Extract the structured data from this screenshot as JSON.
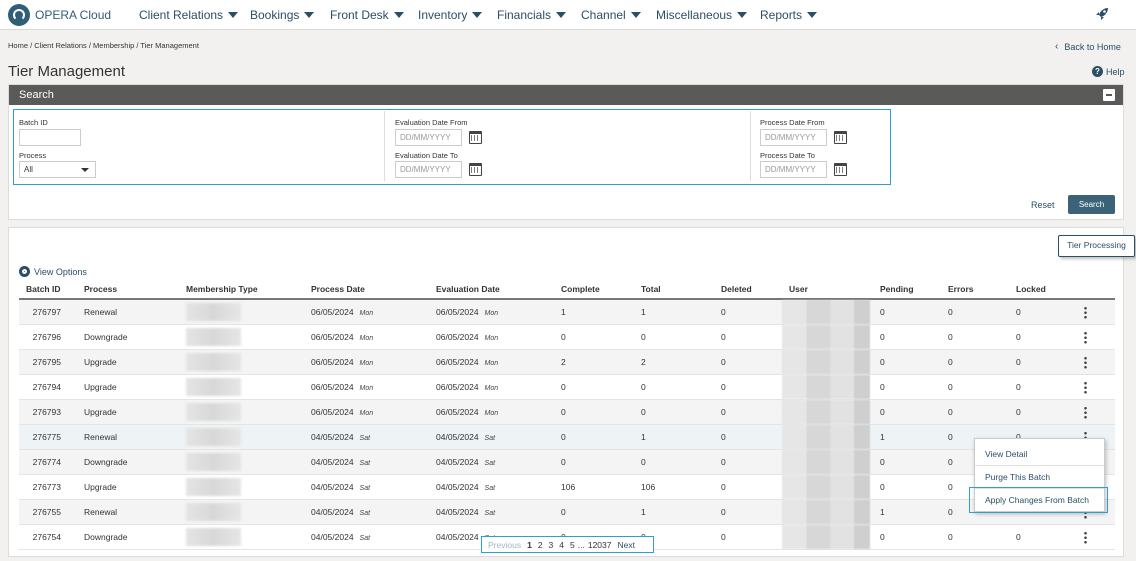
{
  "app": {
    "name": "OPERA Cloud"
  },
  "nav": {
    "items": [
      {
        "label": "Client Relations"
      },
      {
        "label": "Bookings"
      },
      {
        "label": "Front Desk"
      },
      {
        "label": "Inventory"
      },
      {
        "label": "Financials"
      },
      {
        "label": "Channel"
      },
      {
        "label": "Miscellaneous"
      },
      {
        "label": "Reports"
      }
    ],
    "right_icon": "rocket-icon"
  },
  "breadcrumb": "Home / Client Relations / Membership / Tier Management",
  "back_home": "Back to Home",
  "page_title": "Tier Management",
  "help": "Help",
  "search": {
    "title": "Search",
    "batch_id": {
      "label": "Batch ID",
      "value": ""
    },
    "process": {
      "label": "Process",
      "value": "All"
    },
    "eval_from": {
      "label": "Evaluation Date From",
      "placeholder": "DD/MM/YYYY"
    },
    "eval_to": {
      "label": "Evaluation Date To",
      "placeholder": "DD/MM/YYYY"
    },
    "proc_from": {
      "label": "Process Date From",
      "placeholder": "DD/MM/YYYY"
    },
    "proc_to": {
      "label": "Process Date To",
      "placeholder": "DD/MM/YYYY"
    },
    "reset": "Reset",
    "search_button": "Search"
  },
  "results": {
    "tier_processing": "Tier Processing",
    "view_options": "View Options",
    "columns": [
      "Batch ID",
      "Process",
      "Membership Type",
      "Process Date",
      "Evaluation Date",
      "Complete",
      "Total",
      "Deleted",
      "User",
      "Pending",
      "Errors",
      "Locked"
    ],
    "rows": [
      {
        "batch": "276797",
        "process": "Renewal",
        "pdate": "06/05/2024",
        "pday": "Mon",
        "edate": "06/05/2024",
        "eday": "Mon",
        "complete": "1",
        "total": "1",
        "deleted": "0",
        "pending": "0",
        "errors": "0",
        "locked": "0"
      },
      {
        "batch": "276796",
        "process": "Downgrade",
        "pdate": "06/05/2024",
        "pday": "Mon",
        "edate": "06/05/2024",
        "eday": "Mon",
        "complete": "0",
        "total": "0",
        "deleted": "0",
        "pending": "0",
        "errors": "0",
        "locked": "0"
      },
      {
        "batch": "276795",
        "process": "Upgrade",
        "pdate": "06/05/2024",
        "pday": "Mon",
        "edate": "06/05/2024",
        "eday": "Mon",
        "complete": "2",
        "total": "2",
        "deleted": "0",
        "pending": "0",
        "errors": "0",
        "locked": "0"
      },
      {
        "batch": "276794",
        "process": "Upgrade",
        "pdate": "06/05/2024",
        "pday": "Mon",
        "edate": "06/05/2024",
        "eday": "Mon",
        "complete": "0",
        "total": "0",
        "deleted": "0",
        "pending": "0",
        "errors": "0",
        "locked": "0"
      },
      {
        "batch": "276793",
        "process": "Upgrade",
        "pdate": "06/05/2024",
        "pday": "Mon",
        "edate": "06/05/2024",
        "eday": "Mon",
        "complete": "0",
        "total": "0",
        "deleted": "0",
        "pending": "0",
        "errors": "0",
        "locked": "0"
      },
      {
        "batch": "276775",
        "process": "Renewal",
        "pdate": "04/05/2024",
        "pday": "Sat",
        "edate": "04/05/2024",
        "eday": "Sat",
        "complete": "0",
        "total": "1",
        "deleted": "0",
        "pending": "1",
        "errors": "0",
        "locked": "0"
      },
      {
        "batch": "276774",
        "process": "Downgrade",
        "pdate": "04/05/2024",
        "pday": "Sat",
        "edate": "04/05/2024",
        "eday": "Sat",
        "complete": "0",
        "total": "0",
        "deleted": "0",
        "pending": "0",
        "errors": "0",
        "locked": ""
      },
      {
        "batch": "276773",
        "process": "Upgrade",
        "pdate": "04/05/2024",
        "pday": "Sat",
        "edate": "04/05/2024",
        "eday": "Sat",
        "complete": "106",
        "total": "106",
        "deleted": "0",
        "pending": "0",
        "errors": "0",
        "locked": ""
      },
      {
        "batch": "276755",
        "process": "Renewal",
        "pdate": "04/05/2024",
        "pday": "Sat",
        "edate": "04/05/2024",
        "eday": "Sat",
        "complete": "0",
        "total": "1",
        "deleted": "0",
        "pending": "1",
        "errors": "0",
        "locked": ""
      },
      {
        "batch": "276754",
        "process": "Downgrade",
        "pdate": "04/05/2024",
        "pday": "Sat",
        "edate": "04/05/2024",
        "eday": "Sat",
        "complete": "0",
        "total": "0",
        "deleted": "0",
        "pending": "0",
        "errors": "0",
        "locked": "0"
      }
    ]
  },
  "context_menu": {
    "items": [
      "View Detail",
      "Purge This Batch",
      "Apply Changes From Batch"
    ]
  },
  "pagination": {
    "previous": "Previous",
    "pages": [
      "1",
      "2",
      "3",
      "4",
      "5"
    ],
    "ellipsis": "...",
    "last": "12037",
    "next": "Next",
    "current": "1"
  }
}
